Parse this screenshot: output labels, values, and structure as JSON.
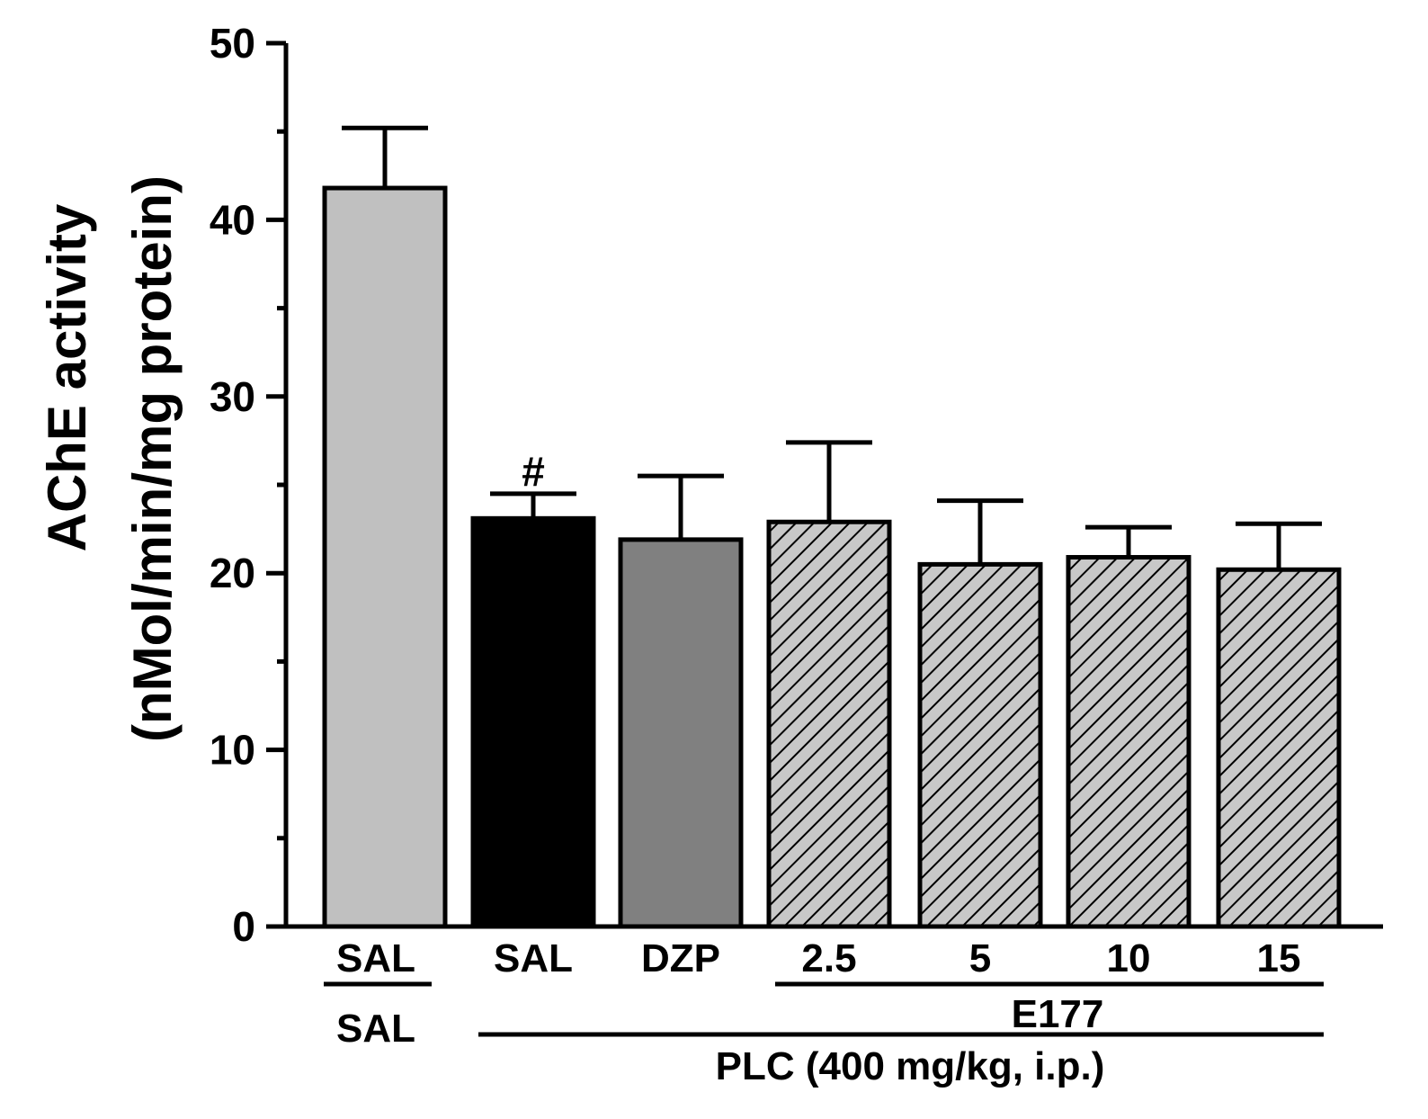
{
  "chart_data": {
    "type": "bar",
    "title": "",
    "ylabel_line1": "AChE activity",
    "ylabel_line2": "(nMol/min/mg protein)",
    "ylim": [
      0,
      50
    ],
    "yticks": [
      0,
      10,
      20,
      30,
      40,
      50
    ],
    "ytick_labels": [
      "0",
      "10",
      "20",
      "30",
      "40",
      "50"
    ],
    "categories": [
      "SAL",
      "SAL",
      "DZP",
      "2.5",
      "5",
      "10",
      "15"
    ],
    "values": [
      41.8,
      23.1,
      21.9,
      22.9,
      20.5,
      20.9,
      20.2
    ],
    "errors": [
      3.4,
      1.4,
      3.6,
      4.5,
      3.6,
      1.7,
      2.6
    ],
    "fills": [
      "#c0c0c0",
      "#000000",
      "#808080",
      "hatch",
      "hatch",
      "hatch",
      "hatch"
    ],
    "significance": {
      "bar_index": 1,
      "symbol": "#"
    },
    "groups": {
      "control_row2": "SAL",
      "e177_label": "E177",
      "plc_label": "PLC (400 mg/kg, i.p.)"
    }
  }
}
